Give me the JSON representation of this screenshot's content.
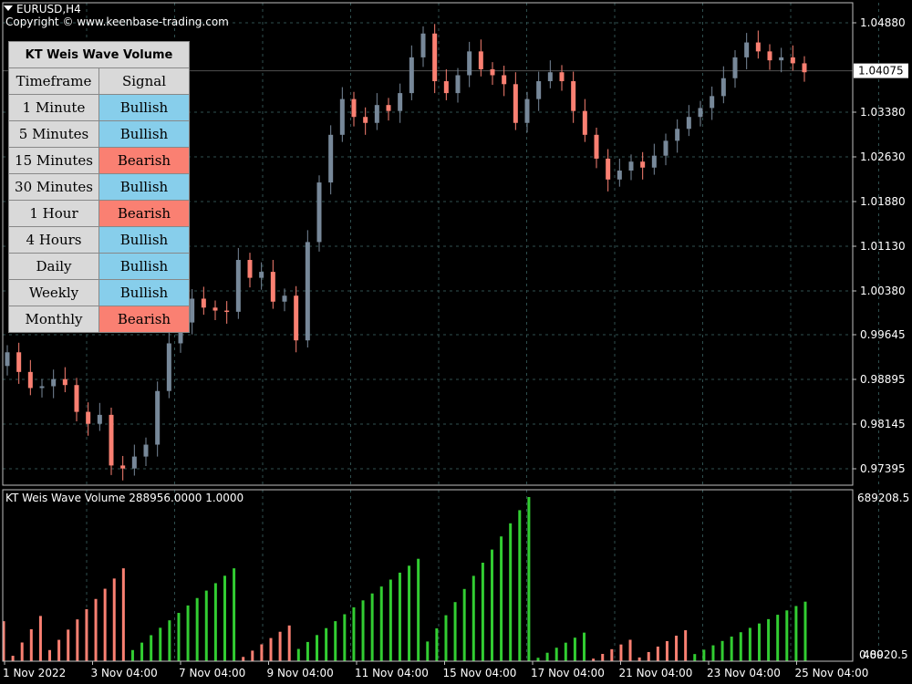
{
  "window": {
    "symbol_title": "EURUSD,H4",
    "copyright": "Copyright © www.keenbase-trading.com"
  },
  "panel": {
    "title": "KT Weis Wave Volume",
    "col_timeframe": "Timeframe",
    "col_signal": "Signal",
    "rows": [
      {
        "tf": "1 Minute",
        "signal": "Bullish"
      },
      {
        "tf": "5 Minutes",
        "signal": "Bullish"
      },
      {
        "tf": "15 Minutes",
        "signal": "Bearish"
      },
      {
        "tf": "30 Minutes",
        "signal": "Bullish"
      },
      {
        "tf": "1 Hour",
        "signal": "Bearish"
      },
      {
        "tf": "4 Hours",
        "signal": "Bullish"
      },
      {
        "tf": "Daily",
        "signal": "Bullish"
      },
      {
        "tf": "Weekly",
        "signal": "Bullish"
      },
      {
        "tf": "Monthly",
        "signal": "Bearish"
      }
    ]
  },
  "indicator": {
    "label": "KT Weis Wave Volume 288956.0000 1.0000",
    "max_label": "689208.5",
    "min_label": "0.00",
    "overlap_label": "48920.5"
  },
  "colors": {
    "background": "#000000",
    "bull_candle": "#778899",
    "bear_candle": "#fa8072",
    "up_wave": "#32cd32",
    "down_wave": "#fa8072",
    "grid": "#2f4f4f",
    "bullish_cell": "#87ceeb",
    "bearish_cell": "#fa8072",
    "price_tag_bg": "#ffffff"
  },
  "chart_data": {
    "type": "candlestick",
    "price_axis_ticks": [
      "1.04880",
      "1.04075",
      "1.03380",
      "1.02630",
      "1.01880",
      "1.01130",
      "1.00380",
      "0.99645",
      "0.98895",
      "0.98145",
      "0.97395"
    ],
    "current_price": "1.04075",
    "time_labels": [
      "1 Nov 2022",
      "3 Nov 04:00",
      "7 Nov 04:00",
      "9 Nov 04:00",
      "11 Nov 04:00",
      "15 Nov 04:00",
      "17 Nov 04:00",
      "21 Nov 04:00",
      "23 Nov 04:00",
      "25 Nov 04:00"
    ],
    "ohlc_keypoints": [
      {
        "o": 0.9912,
        "c": 0.9935
      },
      {
        "o": 0.9935,
        "c": 0.9902
      },
      {
        "o": 0.9902,
        "c": 0.9875
      },
      {
        "o": 0.9875,
        "c": 0.9878
      },
      {
        "o": 0.9878,
        "c": 0.989
      },
      {
        "o": 0.989,
        "c": 0.988
      },
      {
        "o": 0.988,
        "c": 0.9835
      },
      {
        "o": 0.9835,
        "c": 0.9815
      },
      {
        "o": 0.9815,
        "c": 0.983
      },
      {
        "o": 0.983,
        "c": 0.9745
      },
      {
        "o": 0.9745,
        "c": 0.974
      },
      {
        "o": 0.974,
        "c": 0.976
      },
      {
        "o": 0.976,
        "c": 0.978
      },
      {
        "o": 0.978,
        "c": 0.987
      },
      {
        "o": 0.987,
        "c": 0.995
      },
      {
        "o": 0.995,
        "c": 0.9985
      },
      {
        "o": 0.9985,
        "c": 1.0025
      },
      {
        "o": 1.0025,
        "c": 1.001
      },
      {
        "o": 1.001,
        "c": 1.0005
      },
      {
        "o": 1.0005,
        "c": 1.0003
      },
      {
        "o": 1.0003,
        "c": 1.009
      },
      {
        "o": 1.009,
        "c": 1.006
      },
      {
        "o": 1.006,
        "c": 1.007
      },
      {
        "o": 1.007,
        "c": 1.002
      },
      {
        "o": 1.002,
        "c": 1.003
      },
      {
        "o": 1.003,
        "c": 0.9955
      },
      {
        "o": 0.9955,
        "c": 1.012
      },
      {
        "o": 1.012,
        "c": 1.022
      },
      {
        "o": 1.022,
        "c": 1.03
      },
      {
        "o": 1.03,
        "c": 1.036
      },
      {
        "o": 1.036,
        "c": 1.033
      },
      {
        "o": 1.033,
        "c": 1.032
      },
      {
        "o": 1.032,
        "c": 1.035
      },
      {
        "o": 1.035,
        "c": 1.034
      },
      {
        "o": 1.034,
        "c": 1.037
      },
      {
        "o": 1.037,
        "c": 1.043
      },
      {
        "o": 1.043,
        "c": 1.047
      },
      {
        "o": 1.047,
        "c": 1.039
      },
      {
        "o": 1.039,
        "c": 1.037
      },
      {
        "o": 1.037,
        "c": 1.04
      },
      {
        "o": 1.04,
        "c": 1.044
      },
      {
        "o": 1.044,
        "c": 1.041
      },
      {
        "o": 1.041,
        "c": 1.04
      },
      {
        "o": 1.04,
        "c": 1.0385
      },
      {
        "o": 1.0385,
        "c": 1.032
      },
      {
        "o": 1.032,
        "c": 1.036
      },
      {
        "o": 1.036,
        "c": 1.039
      },
      {
        "o": 1.039,
        "c": 1.0405
      },
      {
        "o": 1.0405,
        "c": 1.039
      },
      {
        "o": 1.039,
        "c": 1.034
      },
      {
        "o": 1.034,
        "c": 1.03
      },
      {
        "o": 1.03,
        "c": 1.026
      },
      {
        "o": 1.026,
        "c": 1.0225
      },
      {
        "o": 1.0225,
        "c": 1.024
      },
      {
        "o": 1.024,
        "c": 1.0255
      },
      {
        "o": 1.0255,
        "c": 1.0245
      },
      {
        "o": 1.0245,
        "c": 1.0265
      },
      {
        "o": 1.0265,
        "c": 1.029
      },
      {
        "o": 1.029,
        "c": 1.031
      },
      {
        "o": 1.031,
        "c": 1.033
      },
      {
        "o": 1.033,
        "c": 1.0345
      },
      {
        "o": 1.0345,
        "c": 1.0365
      },
      {
        "o": 1.0365,
        "c": 1.0395
      },
      {
        "o": 1.0395,
        "c": 1.043
      },
      {
        "o": 1.043,
        "c": 1.0455
      },
      {
        "o": 1.0455,
        "c": 1.044
      },
      {
        "o": 1.044,
        "c": 1.0425
      },
      {
        "o": 1.0425,
        "c": 1.043
      },
      {
        "o": 1.043,
        "c": 1.042
      },
      {
        "o": 1.042,
        "c": 1.0405
      }
    ],
    "weis_waves": [
      {
        "dir": "down",
        "peak": 168000
      },
      {
        "dir": "down",
        "peak": 190000
      },
      {
        "dir": "down",
        "peak": 390000
      },
      {
        "dir": "up",
        "peak": 390000
      },
      {
        "dir": "down",
        "peak": 150000
      },
      {
        "dir": "up",
        "peak": 430000
      },
      {
        "dir": "up",
        "peak": 689208.5
      },
      {
        "dir": "up",
        "peak": 120000
      },
      {
        "dir": "down",
        "peak": 90000
      },
      {
        "dir": "down",
        "peak": 130000
      },
      {
        "dir": "up",
        "peak": 250000
      }
    ],
    "ylim_volume": [
      0,
      689208.5
    ]
  }
}
